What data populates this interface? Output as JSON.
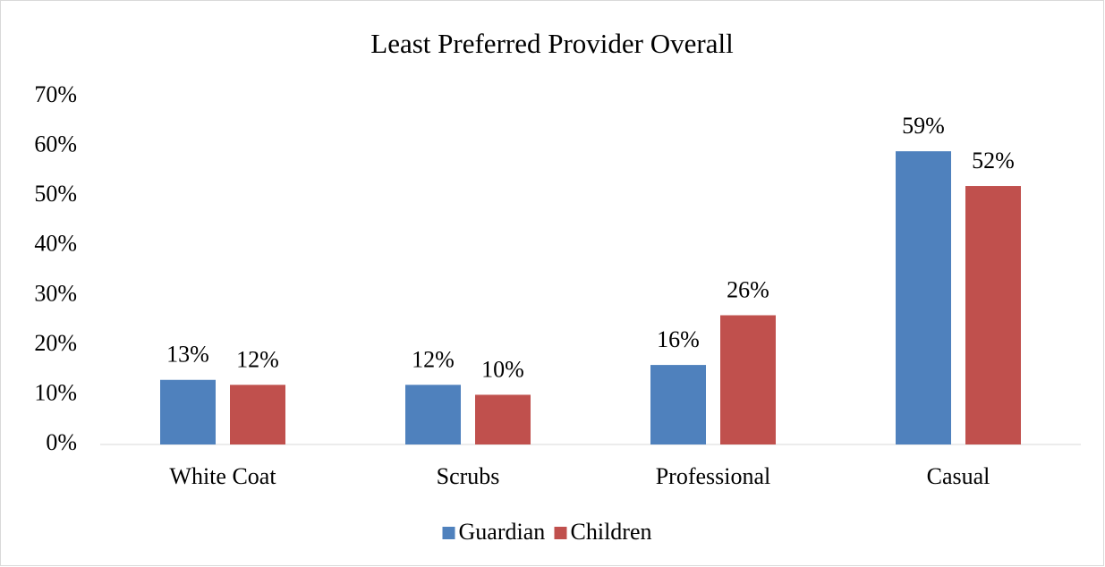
{
  "chart_data": {
    "type": "bar",
    "title": "Least Preferred Provider Overall",
    "categories": [
      "White Coat",
      "Scrubs",
      "Professional",
      "Casual"
    ],
    "series": [
      {
        "name": "Guardian",
        "color": "#4f81bd",
        "values": [
          13,
          12,
          16,
          59
        ],
        "value_labels": [
          "13%",
          "12%",
          "16%",
          "59%"
        ]
      },
      {
        "name": "Children",
        "color": "#c0504d",
        "values": [
          12,
          10,
          26,
          52
        ],
        "value_labels": [
          "12%",
          "10%",
          "26%",
          "52%"
        ]
      }
    ],
    "ylim": [
      0,
      70
    ],
    "yticks": [
      {
        "value": 0,
        "label": "0%"
      },
      {
        "value": 10,
        "label": "10%"
      },
      {
        "value": 20,
        "label": "20%"
      },
      {
        "value": 30,
        "label": "30%"
      },
      {
        "value": 40,
        "label": "40%"
      },
      {
        "value": 50,
        "label": "50%"
      },
      {
        "value": 60,
        "label": "60%"
      },
      {
        "value": 70,
        "label": "70%"
      }
    ],
    "grid": false,
    "legend": "bottom"
  }
}
